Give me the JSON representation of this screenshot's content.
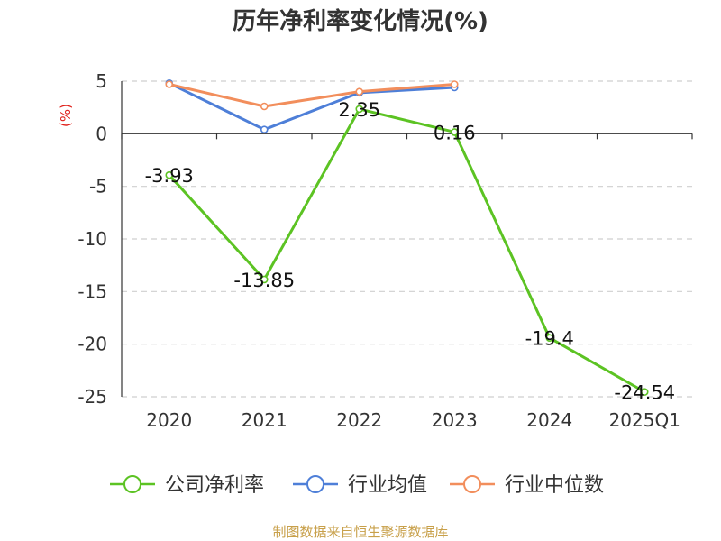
{
  "chart_data": {
    "type": "line",
    "title": "历年净利率变化情况(%)",
    "ylabel": "(%)",
    "categories": [
      "2020",
      "2021",
      "2022",
      "2023",
      "2024",
      "2025Q1"
    ],
    "ylim": [
      -25,
      5
    ],
    "yticks": [
      5,
      0,
      -5,
      -10,
      -15,
      -20,
      -25
    ],
    "grid": true,
    "legend_position": "bottom",
    "series": [
      {
        "name": "公司净利率",
        "color": "#5cc323",
        "values": [
          -3.93,
          -13.85,
          2.35,
          0.16,
          -19.4,
          -24.54
        ],
        "labels": [
          "-3.93",
          "-13.85",
          "2.35",
          "0.16",
          "-19.4",
          "-24.54"
        ]
      },
      {
        "name": "行业均值",
        "color": "#4e7fd8",
        "values": [
          4.8,
          0.4,
          3.9,
          4.4,
          null,
          null
        ]
      },
      {
        "name": "行业中位数",
        "color": "#f28e5c",
        "values": [
          4.7,
          2.6,
          4.0,
          4.7,
          null,
          null
        ]
      }
    ]
  },
  "footer": {
    "source": "制图数据来自恒生聚源数据库"
  }
}
